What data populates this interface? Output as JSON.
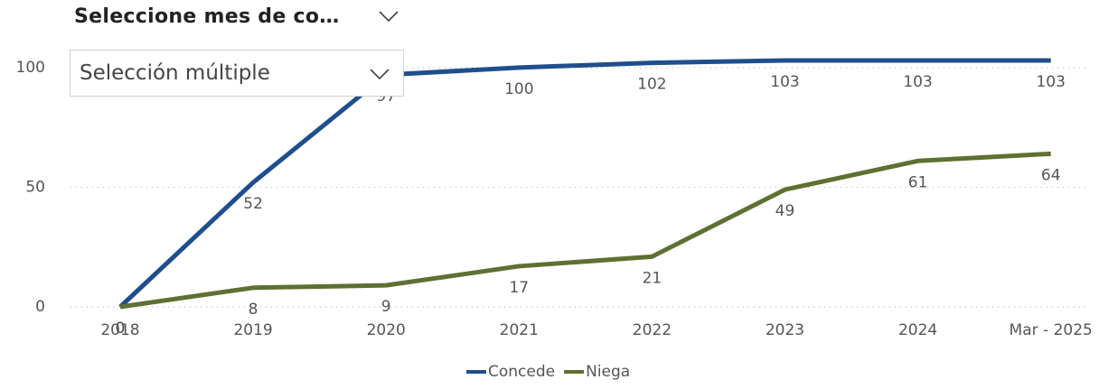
{
  "slicer": {
    "title": "Seleccione mes de co…",
    "placeholder": "Selección múltiple"
  },
  "chart_data": {
    "type": "line",
    "categories": [
      "2018",
      "2019",
      "2020",
      "2021",
      "2022",
      "2023",
      "2024",
      "Mar - 2025"
    ],
    "series": [
      {
        "name": "Concede",
        "color": "#1f4e8c",
        "values": [
          0,
          52,
          97,
          100,
          102,
          103,
          103,
          103
        ]
      },
      {
        "name": "Niega",
        "color": "#5e7032",
        "values": [
          0,
          8,
          9,
          17,
          21,
          49,
          61,
          64
        ]
      }
    ],
    "ylim": [
      0,
      106
    ],
    "yticks": [
      0,
      50,
      100
    ],
    "grid": true,
    "legend": "bottom"
  }
}
